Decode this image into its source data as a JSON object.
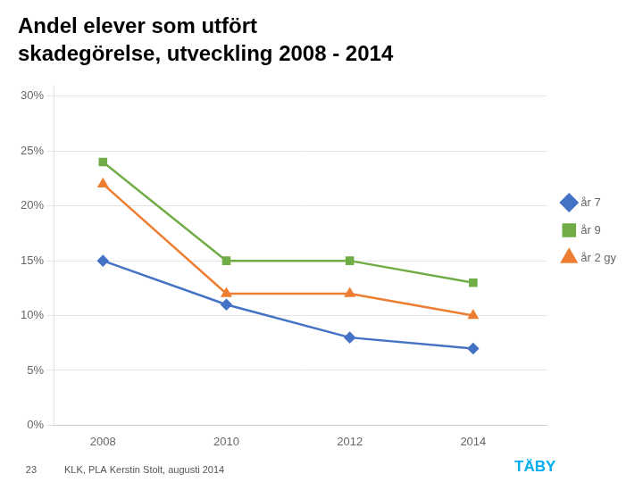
{
  "chart_data": {
    "type": "line",
    "title": "Andel elever som utfört",
    "subtitle": "skadegörelse, utveckling 2008 - 2014",
    "x": [
      2008,
      2010,
      2012,
      2014
    ],
    "series": [
      {
        "name": "år 7",
        "color": "#4472C4",
        "marker": "diamond",
        "values": [
          15,
          11,
          8,
          7
        ]
      },
      {
        "name": "år 9",
        "color": "#70AD47",
        "marker": "square",
        "values": [
          24,
          15,
          15,
          13
        ]
      },
      {
        "name": "år 2 gy",
        "color": "#ED7D31",
        "marker": "triangle",
        "values": [
          22,
          12,
          12,
          10
        ]
      }
    ],
    "xlim": [
      2007.2,
      2015.2
    ],
    "xticks": [
      2008,
      2010,
      2012,
      2014
    ],
    "ylim": [
      0,
      31
    ],
    "yticks": [
      {
        "value": 0,
        "label": "0%"
      },
      {
        "value": 5,
        "label": "5%"
      },
      {
        "value": 10,
        "label": "10%"
      },
      {
        "value": 15,
        "label": "15%"
      },
      {
        "value": 20,
        "label": "20%"
      },
      {
        "value": 25,
        "label": "25%"
      },
      {
        "value": 30,
        "label": "30%"
      }
    ],
    "grid": "y",
    "legend": "right",
    "annotations": [
      {
        "text": "23"
      },
      {
        "text": "KLK, PLA Kerstin Stolt, augusti 2014"
      },
      {
        "text": "TÄBY",
        "color": "#00AEEF"
      }
    ]
  }
}
